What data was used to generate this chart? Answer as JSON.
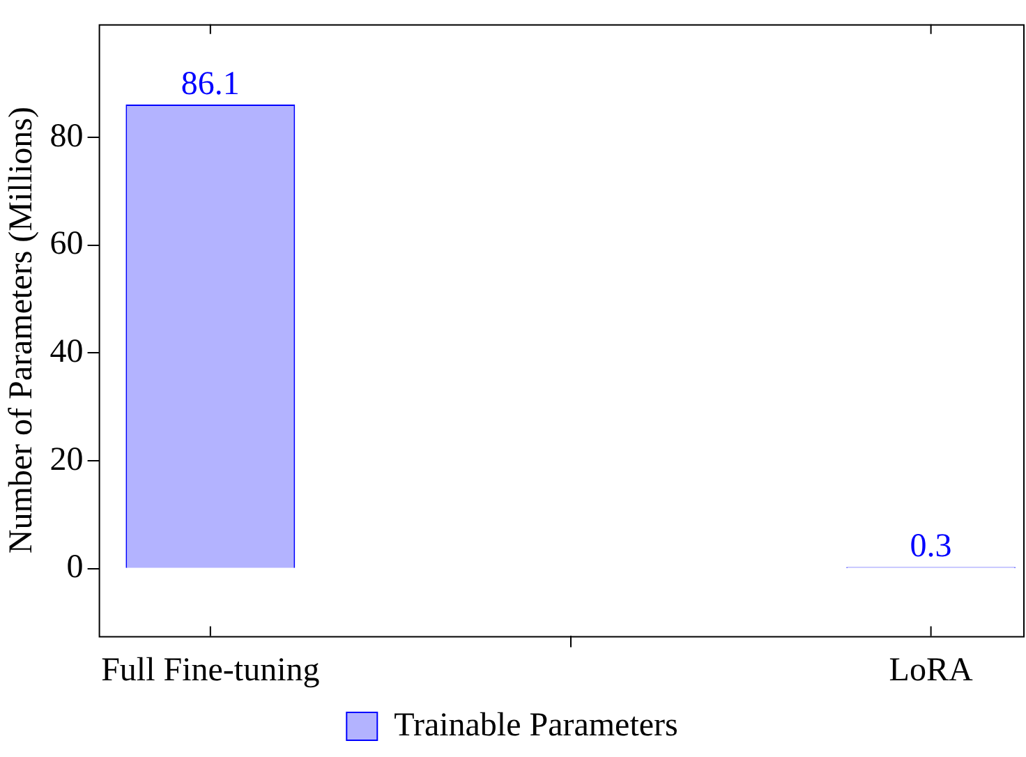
{
  "chart_data": {
    "type": "bar",
    "ylabel": "Number of Parameters (Millions)",
    "categories": [
      "Full Fine-tuning",
      "LoRA"
    ],
    "series": [
      {
        "name": "Trainable Parameters",
        "color": "#b3b3ff",
        "values": [
          86.1,
          0.3
        ]
      }
    ],
    "ylim": [
      -12.5,
      101
    ],
    "yticks": [
      0,
      20,
      40,
      60,
      80
    ],
    "data_labels": true,
    "legend": "bottom",
    "grid": false
  }
}
